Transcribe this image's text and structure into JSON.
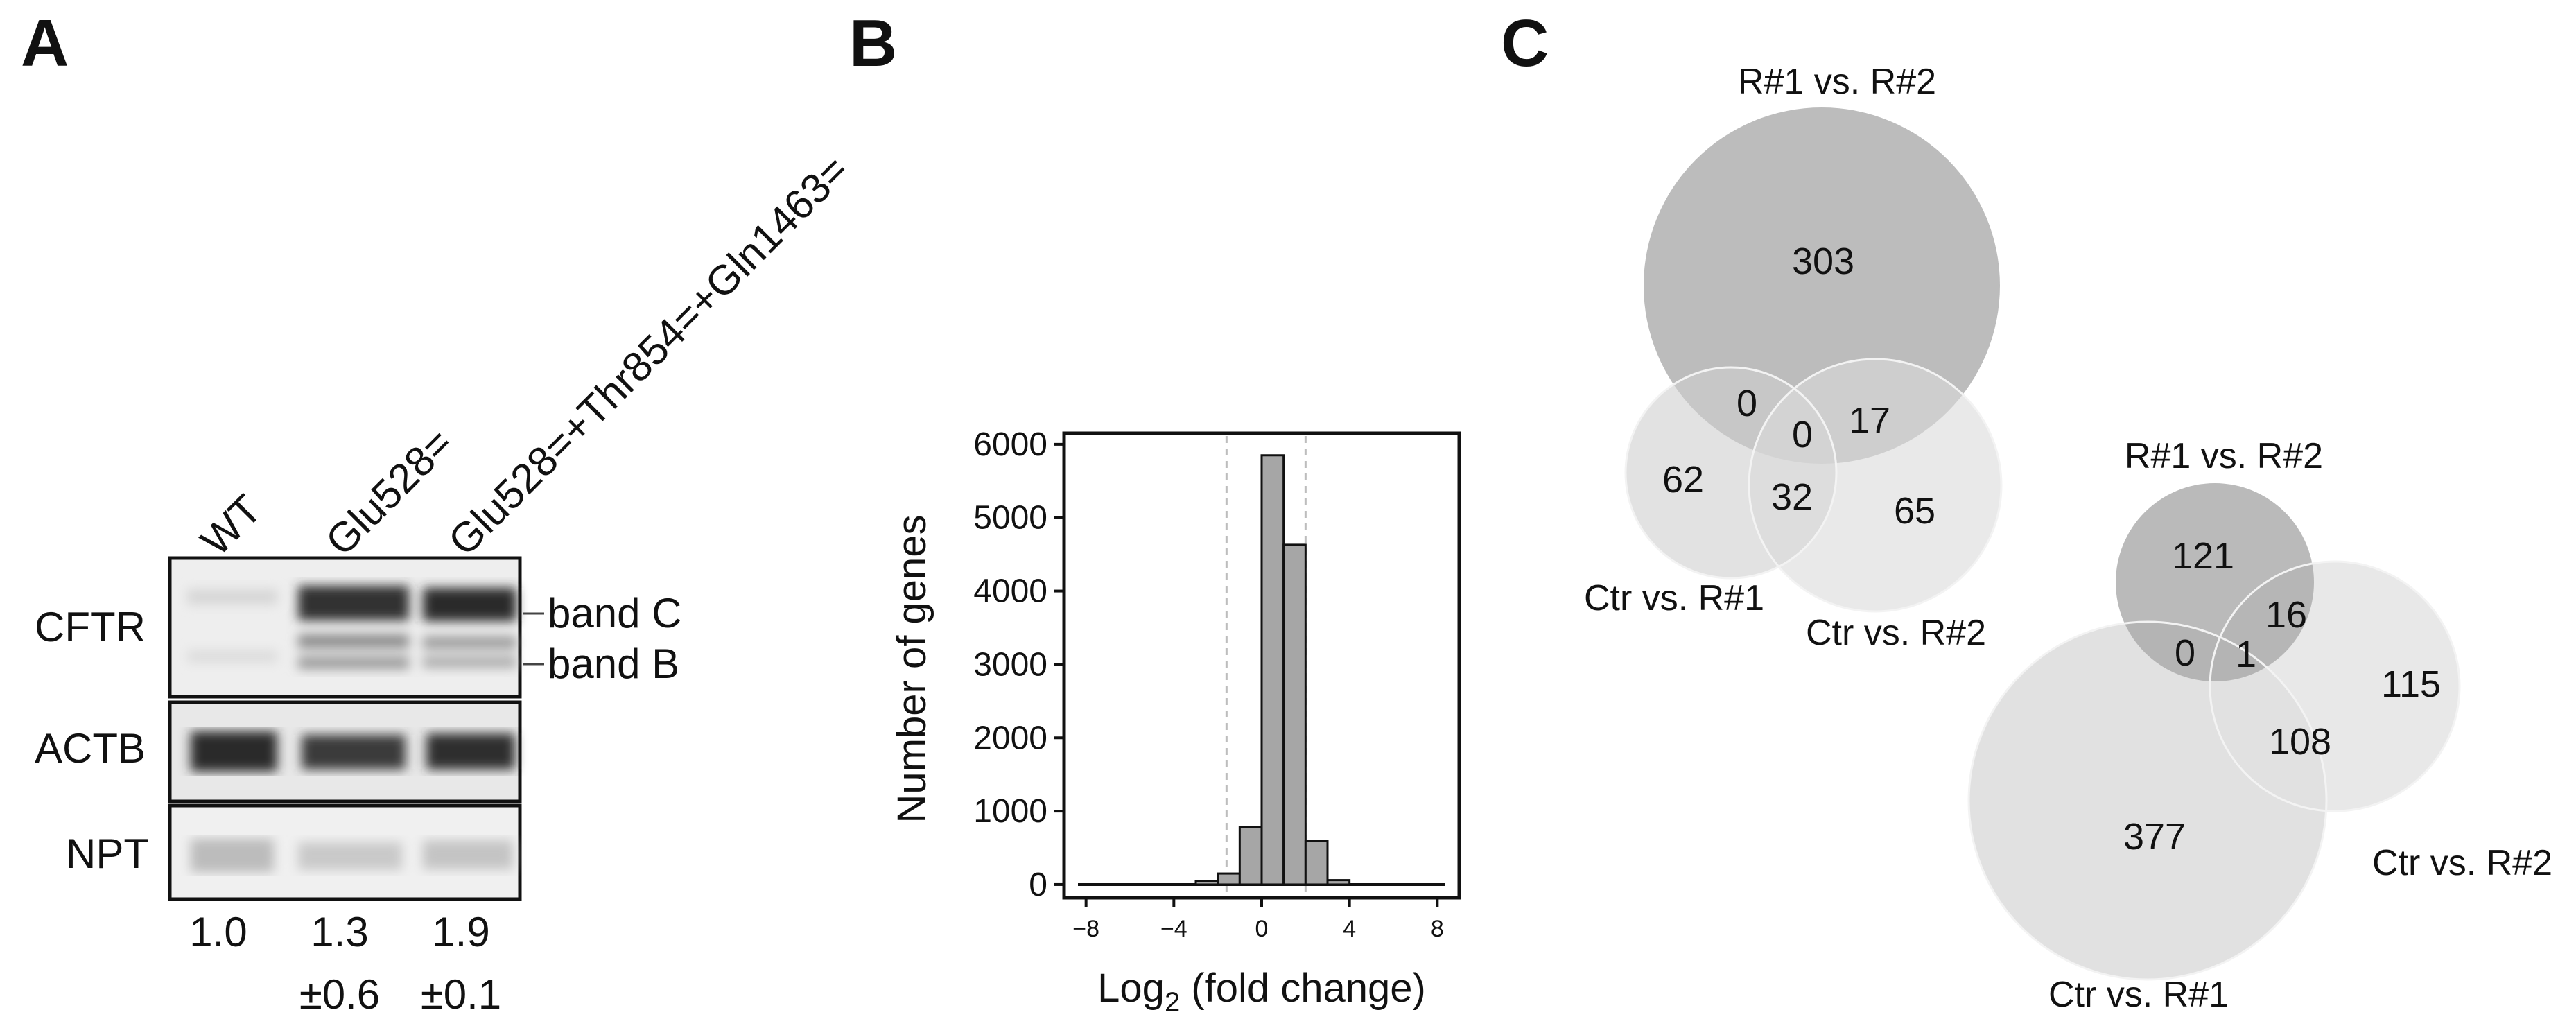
{
  "panels": [
    "A",
    "B",
    "C"
  ],
  "blot": {
    "lanes": [
      "WT",
      "Glu528=",
      "Glu528=+Thr854=+Gln1463="
    ],
    "rows": [
      "CFTR",
      "ACTB",
      "NPT"
    ],
    "band_labels": [
      "band C",
      "band B"
    ],
    "quant_values": [
      "1.0",
      "1.3",
      "1.9"
    ],
    "quant_errors": [
      "",
      "±0.6",
      "±0.1"
    ]
  },
  "chart_data": {
    "type": "bar",
    "title": "",
    "xlabel_main": "Log",
    "xlabel_sub": "2",
    "xlabel_rest": " (fold change)",
    "ylabel": "Number of genes",
    "x_ticks": [
      -8,
      -4,
      0,
      4,
      8
    ],
    "x_tick_labels": [
      "−8",
      "−4",
      "0",
      "4",
      "8"
    ],
    "y_ticks": [
      0,
      1000,
      2000,
      3000,
      4000,
      5000,
      6000
    ],
    "y_tick_labels": [
      "0",
      "1000",
      "2000",
      "3000",
      "4000",
      "5000",
      "6000"
    ],
    "xlim": [
      -9,
      9
    ],
    "ylim": [
      -180,
      6150
    ],
    "threshold_lines": [
      -1.6,
      2
    ],
    "bins": [
      {
        "x0": -9,
        "x1": -3,
        "value": 0
      },
      {
        "x0": -3,
        "x1": -2,
        "value": 50
      },
      {
        "x0": -2,
        "x1": -1,
        "value": 150
      },
      {
        "x0": -1,
        "x1": 0,
        "value": 780
      },
      {
        "x0": 0,
        "x1": 1,
        "value": 5850
      },
      {
        "x0": 1,
        "x1": 2,
        "value": 4630
      },
      {
        "x0": 2,
        "x1": 3,
        "value": 590
      },
      {
        "x0": 3,
        "x1": 4,
        "value": 60
      },
      {
        "x0": 4,
        "x1": 9,
        "value": 0
      }
    ],
    "bar_color": "#a6a6a6"
  },
  "venn": {
    "top": {
      "circles": [
        "R#1 vs. R#2",
        "Ctr vs. R#1",
        "Ctr vs. R#2"
      ],
      "values": {
        "a_only": "303",
        "a_b": "0",
        "a_b_c": "0",
        "a_c": "17",
        "b_only": "62",
        "b_c": "32",
        "c_only": "65"
      }
    },
    "bottom": {
      "circles": [
        "R#1 vs. R#2",
        "Ctr vs. R#2",
        "Ctr vs. R#1"
      ],
      "values": {
        "a_only": "121",
        "a_b": "16",
        "a_c": "0",
        "a_b_c": "1",
        "b_only": "115",
        "b_c": "108",
        "c_only": "377"
      }
    },
    "colors": {
      "dark": "#a9a9a9",
      "light": "#d7d7d7",
      "lighter": "#e3e3e3"
    }
  }
}
